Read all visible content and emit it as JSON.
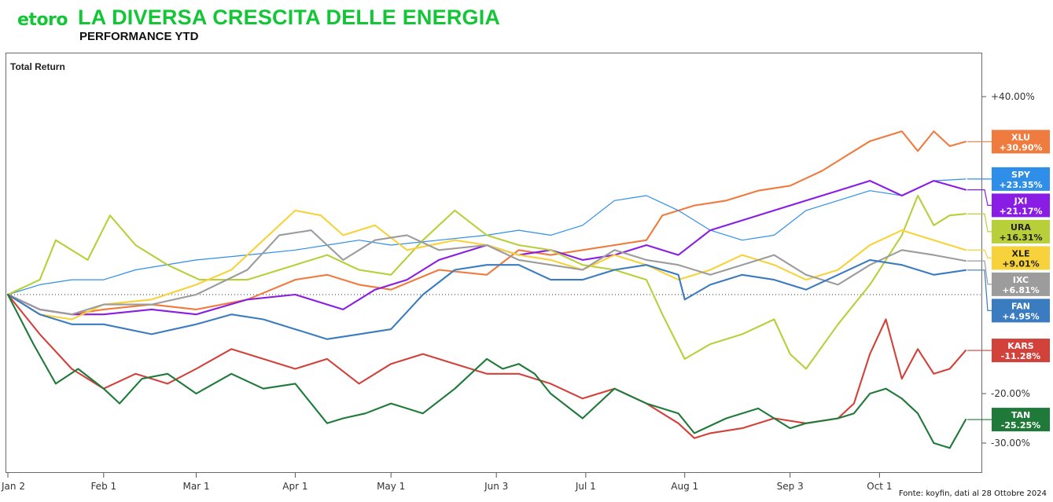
{
  "header": {
    "logo": "etoro",
    "title": "LA DIVERSA CRESCITA DELLE ENERGIA",
    "subtitle": "PERFORMANCE YTD"
  },
  "chart_label": "Total Return",
  "source": "Fonte: koyfin, dati al 28 Ottobre 2024",
  "chart_data": {
    "type": "line",
    "yunit": "%",
    "ylim": [
      -35,
      45
    ],
    "yticks": [
      {
        "value": 40,
        "label": "+40.00%"
      },
      {
        "value": -20,
        "label": "-20.00%"
      },
      {
        "value": -30,
        "label": "-30.00%"
      }
    ],
    "xticks": [
      {
        "label": "Jan 2",
        "day": 0
      },
      {
        "label": "Feb 1",
        "day": 30
      },
      {
        "label": "Mar 1",
        "day": 59
      },
      {
        "label": "Apr 1",
        "day": 90
      },
      {
        "label": "May 1",
        "day": 120
      },
      {
        "label": "Jun 3",
        "day": 153
      },
      {
        "label": "Jul 1",
        "day": 181
      },
      {
        "label": "Aug 1",
        "day": 212
      },
      {
        "label": "Sep 3",
        "day": 245
      },
      {
        "label": "Oct 1",
        "day": 273
      }
    ],
    "xmax": 300,
    "zero_line": true,
    "series": [
      {
        "name": "XLU",
        "label": "+30.90%",
        "color": "#f07b3e",
        "x": [
          0,
          10,
          20,
          30,
          45,
          59,
          75,
          90,
          100,
          110,
          120,
          135,
          150,
          160,
          170,
          180,
          190,
          200,
          205,
          215,
          225,
          235,
          245,
          255,
          260,
          270,
          280,
          285,
          290,
          295,
          300
        ],
        "y": [
          0,
          -3,
          -4,
          -3,
          -2,
          -3,
          -1,
          3,
          4,
          2,
          1,
          5,
          4,
          9,
          8,
          9,
          10,
          11,
          16,
          18,
          19,
          21,
          22,
          25,
          27,
          31,
          33,
          29,
          33,
          30,
          30.9
        ]
      },
      {
        "name": "SPY",
        "label": "+23.35%",
        "color": "#2f8fe8",
        "x": [
          0,
          10,
          20,
          30,
          40,
          59,
          75,
          90,
          100,
          110,
          120,
          135,
          150,
          160,
          170,
          180,
          190,
          200,
          210,
          220,
          230,
          240,
          250,
          260,
          270,
          280,
          290,
          300
        ],
        "y": [
          0,
          2,
          3,
          3,
          5,
          7,
          8,
          9,
          10,
          11,
          10,
          11,
          12,
          13,
          12,
          14,
          19,
          20,
          17,
          13,
          11,
          12,
          17,
          19,
          21,
          20,
          23,
          23.35
        ]
      },
      {
        "name": "JXI",
        "label": "+21.17%",
        "color": "#8a1de3",
        "x": [
          0,
          10,
          20,
          30,
          45,
          59,
          75,
          90,
          100,
          105,
          115,
          125,
          135,
          150,
          160,
          170,
          180,
          190,
          200,
          210,
          220,
          230,
          240,
          250,
          260,
          270,
          280,
          290,
          300
        ],
        "y": [
          0,
          -3,
          -4,
          -4,
          -3,
          -4,
          -1,
          0,
          -2,
          -3,
          1,
          3,
          7,
          10,
          8,
          9,
          7,
          8,
          10,
          8,
          13,
          15,
          17,
          19,
          21,
          23,
          20,
          23,
          21.17
        ]
      },
      {
        "name": "URA",
        "label": "+16.31%",
        "color": "#b9cf3a",
        "x": [
          0,
          10,
          15,
          25,
          32,
          40,
          50,
          60,
          75,
          90,
          100,
          110,
          120,
          130,
          140,
          150,
          160,
          170,
          180,
          190,
          200,
          205,
          212,
          220,
          230,
          240,
          245,
          250,
          260,
          270,
          280,
          285,
          290,
          295,
          300
        ],
        "y": [
          0,
          3,
          11,
          7,
          16,
          10,
          6,
          3,
          3,
          6,
          8,
          5,
          4,
          11,
          17,
          12,
          10,
          9,
          6,
          5,
          3,
          -4,
          -13,
          -10,
          -8,
          -5,
          -12,
          -15,
          -6,
          2,
          12,
          20,
          14,
          16,
          16.31
        ]
      },
      {
        "name": "XLE",
        "label": "+9.01%",
        "color": "#f8d23a",
        "x": [
          0,
          10,
          20,
          30,
          45,
          59,
          70,
          80,
          90,
          98,
          105,
          115,
          125,
          140,
          150,
          160,
          170,
          180,
          190,
          200,
          210,
          220,
          230,
          240,
          250,
          260,
          270,
          280,
          290,
          300
        ],
        "y": [
          0,
          -4,
          -5,
          -2,
          -1,
          2,
          5,
          11,
          17,
          16,
          12,
          14,
          9,
          11,
          10,
          8,
          7,
          5,
          8,
          6,
          3,
          5,
          8,
          6,
          3,
          5,
          10,
          13,
          11,
          9.01
        ]
      },
      {
        "name": "IXC",
        "label": "+6.81%",
        "color": "#9c9c9c",
        "x": [
          0,
          10,
          20,
          30,
          45,
          59,
          75,
          85,
          95,
          105,
          115,
          125,
          135,
          150,
          160,
          170,
          180,
          190,
          200,
          210,
          220,
          230,
          240,
          250,
          260,
          270,
          280,
          290,
          300
        ],
        "y": [
          0,
          -3,
          -4,
          -2,
          -2,
          0,
          5,
          12,
          13,
          7,
          11,
          12,
          9,
          10,
          7,
          6,
          5,
          9,
          7,
          6,
          4,
          6,
          8,
          4,
          2,
          6,
          9,
          8,
          6.81
        ]
      },
      {
        "name": "FAN",
        "label": "+4.95%",
        "color": "#3b7bbf",
        "x": [
          0,
          10,
          20,
          30,
          45,
          59,
          70,
          80,
          90,
          100,
          110,
          120,
          130,
          140,
          150,
          160,
          170,
          180,
          190,
          200,
          210,
          212,
          220,
          230,
          240,
          250,
          260,
          270,
          280,
          290,
          300
        ],
        "y": [
          0,
          -4,
          -6,
          -6,
          -8,
          -6,
          -4,
          -5,
          -7,
          -9,
          -8,
          -7,
          0,
          5,
          6,
          6,
          3,
          3,
          5,
          6,
          4,
          -1,
          2,
          4,
          3,
          1,
          4,
          7,
          6,
          4,
          4.95
        ]
      },
      {
        "name": "KARS",
        "label": "-11.28%",
        "color": "#d2413a",
        "x": [
          0,
          10,
          20,
          30,
          40,
          50,
          59,
          70,
          80,
          90,
          100,
          110,
          120,
          130,
          140,
          150,
          160,
          170,
          180,
          190,
          200,
          210,
          215,
          220,
          230,
          240,
          250,
          260,
          265,
          270,
          275,
          280,
          285,
          290,
          295,
          300
        ],
        "y": [
          0,
          -8,
          -15,
          -19,
          -16,
          -18,
          -15,
          -11,
          -13,
          -15,
          -13,
          -18,
          -14,
          -12,
          -14,
          -16,
          -16,
          -18,
          -21,
          -19,
          -22,
          -26,
          -29,
          -28,
          -27,
          -25,
          -26,
          -25,
          -22,
          -12,
          -5,
          -17,
          -11,
          -16,
          -15,
          -11.28
        ]
      },
      {
        "name": "TAN",
        "label": "-25.25%",
        "color": "#1f7a3a",
        "x": [
          0,
          8,
          15,
          22,
          30,
          35,
          42,
          50,
          59,
          70,
          80,
          90,
          100,
          105,
          112,
          120,
          130,
          140,
          150,
          155,
          160,
          165,
          170,
          180,
          190,
          200,
          210,
          215,
          225,
          235,
          245,
          250,
          260,
          265,
          270,
          275,
          280,
          285,
          290,
          295,
          300
        ],
        "y": [
          0,
          -10,
          -18,
          -15,
          -19,
          -22,
          -17,
          -16,
          -20,
          -16,
          -19,
          -18,
          -26,
          -25,
          -24,
          -22,
          -24,
          -19,
          -13,
          -15,
          -14,
          -16,
          -20,
          -25,
          -19,
          -22,
          -24,
          -28,
          -25,
          -23,
          -27,
          -26,
          -25,
          -24,
          -20,
          -19,
          -21,
          -24,
          -30,
          -31,
          -25.25
        ]
      }
    ]
  }
}
